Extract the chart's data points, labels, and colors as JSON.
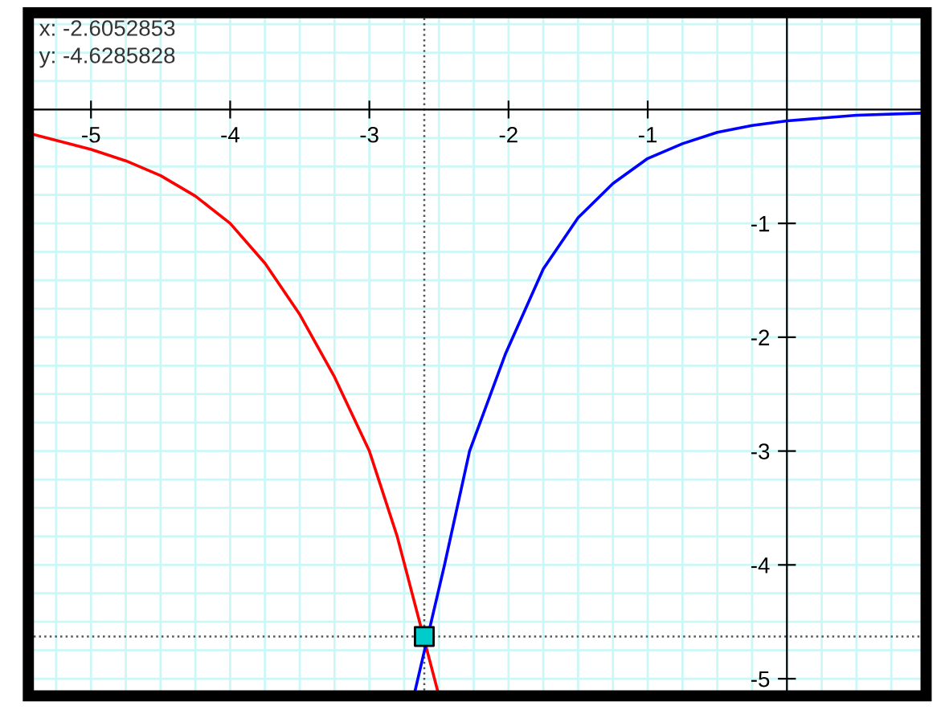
{
  "chart_data": {
    "type": "line",
    "xlim": [
      -5.45,
      1.0
    ],
    "ylim": [
      -5.15,
      0.85
    ],
    "xticks": [
      -5,
      -4,
      -3,
      -2,
      -1
    ],
    "yticks": [
      -1,
      -2,
      -3,
      -4,
      -5
    ],
    "grid": true,
    "marker": "none",
    "line_style": "solid",
    "series": [
      {
        "color": "#ff0000",
        "x": [
          -5.44,
          -5.25,
          -5,
          -4.75,
          -4.5,
          -4.25,
          -4,
          -3.75,
          -3.5,
          -3.25,
          -3,
          -2.8,
          -2.5
        ],
        "values": [
          -0.21,
          -0.27,
          -0.35,
          -0.45,
          -0.58,
          -0.76,
          -1.0,
          -1.35,
          -1.8,
          -2.35,
          -3.0,
          -3.75,
          -5.15
        ]
      },
      {
        "color": "#0000ff",
        "x": [
          -2.68,
          -2.46,
          -2.28,
          -2.02,
          -1.75,
          -1.5,
          -1.25,
          -1,
          -0.75,
          -0.5,
          -0.25,
          0,
          0.5,
          1.0
        ],
        "values": [
          -5.15,
          -4.0,
          -3.0,
          -2.14,
          -1.4,
          -0.95,
          -0.65,
          -0.43,
          -0.3,
          -0.2,
          -0.14,
          -0.1,
          -0.05,
          -0.03
        ]
      },
      {
        "type": "scatter",
        "marker": "square",
        "color": "#00cccc",
        "x": [
          -2.6052853
        ],
        "values": [
          -4.6285828
        ]
      }
    ],
    "ref_lines": [
      {
        "axis": "x",
        "value": -2.6052853,
        "line_style": "dotted",
        "color": "#555555"
      },
      {
        "axis": "y",
        "value": -4.6285828,
        "line_style": "dotted",
        "color": "#555555"
      }
    ],
    "annotations": [
      "x: -2.6052853",
      "y: -4.6285828"
    ]
  }
}
